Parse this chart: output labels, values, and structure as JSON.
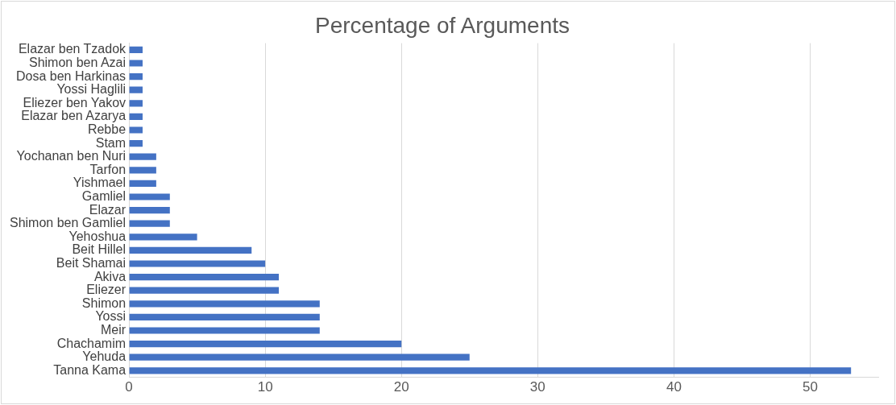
{
  "chart_data": {
    "type": "bar",
    "orientation": "horizontal",
    "title": "Percentage of Arguments",
    "categories": [
      "Elazar ben Tzadok",
      "Shimon ben Azai",
      "Dosa ben Harkinas",
      "Yossi Haglili",
      "Eliezer ben Yakov",
      "Elazar ben Azarya",
      "Rebbe",
      "Stam",
      "Yochanan ben Nuri",
      "Tarfon",
      "Yishmael",
      "Gamliel",
      "Elazar",
      "Shimon ben Gamliel",
      "Yehoshua",
      "Beit Hillel",
      "Beit Shamai",
      "Akiva",
      "Eliezer",
      "Shimon",
      "Yossi",
      "Meir",
      "Chachamim",
      "Yehuda",
      "Tanna Kama"
    ],
    "values": [
      1,
      1,
      1,
      1,
      1,
      1,
      1,
      1,
      2,
      2,
      2,
      3,
      3,
      3,
      5,
      9,
      10,
      11,
      11,
      14,
      14,
      14,
      20,
      25,
      53
    ],
    "color": "#4472c4",
    "xlim": [
      0,
      55
    ],
    "xticks": [
      0,
      10,
      20,
      30,
      40,
      50
    ],
    "grid": "x",
    "legend": false
  }
}
